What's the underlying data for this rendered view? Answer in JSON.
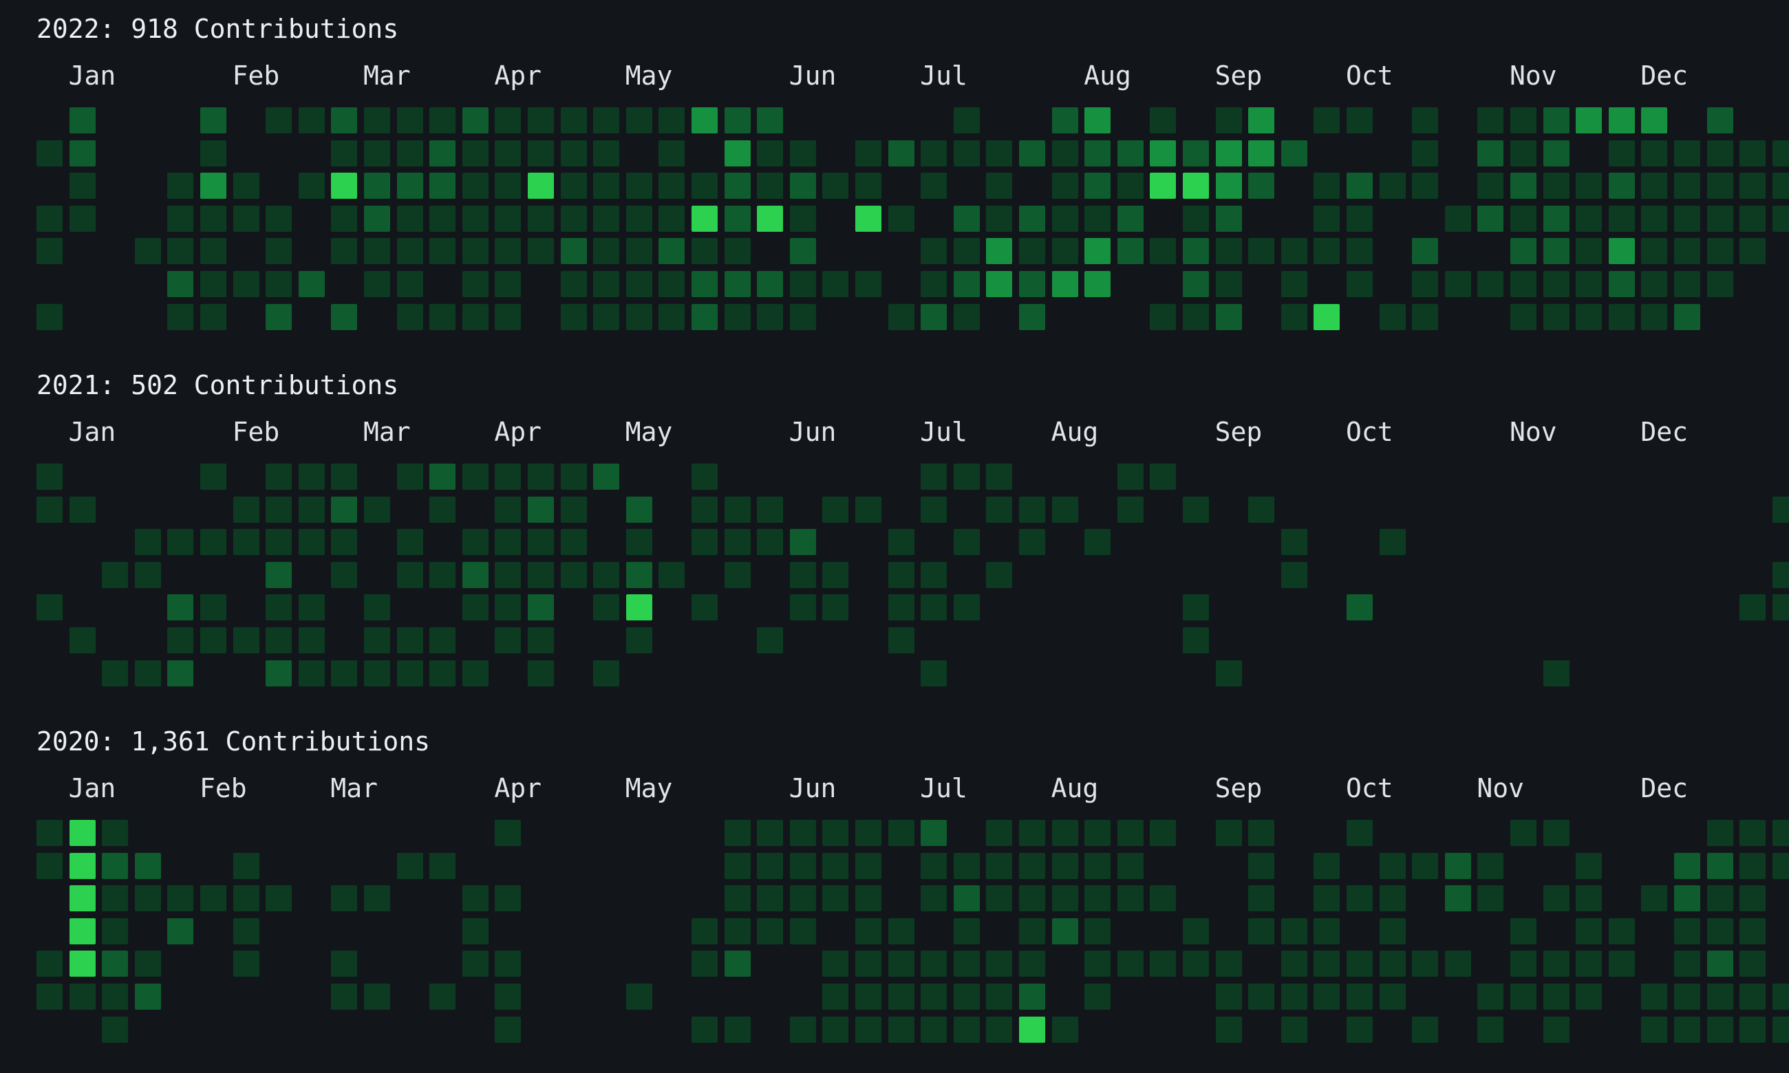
{
  "colors": {
    "background": "#12161b",
    "levels": [
      "#0c3b22",
      "#0f5c2e",
      "#16913f",
      "#2bd14f"
    ]
  },
  "years": [
    {
      "title": "2022: 918 Contributions",
      "months": [
        "Jan",
        "Feb",
        "Mar",
        "Apr",
        "May",
        "Jun",
        "Jul",
        "Aug",
        "Sep",
        "Oct",
        "Nov",
        "Dec"
      ],
      "month_weeks": [
        1,
        6,
        10,
        14,
        18,
        23,
        27,
        32,
        36,
        40,
        45,
        49
      ],
      "rows": [
        ". 2 . . . 2 . 1 1 2 1 1 1 2 1 1 1 1 1 1 3 2 2 . . . . . 1 . . 2 3 . 1 . 1 3 . 1 1 . 1 . 1 1 2 3 3 3 . 2 . .",
        "1 2 . . . 1 . . . 1 1 1 2 1 1 1 1 1 . 1 . 3 1 1 . 1 2 1 1 1 2 1 2 2 3 2 3 3 2 . . . 1 . 2 1 2 . 1 1 1 1 1 1 1 .",
        ". 1 . . 1 3 1 . 1 4 2 2 2 1 1 4 1 1 1 1 1 2 1 2 1 1 . 1 . 1 . 1 2 1 4 4 3 2 . 1 2 1 1 . 1 2 1 1 2 1 1 1 1 1 2 1",
        "1 1 . . 1 1 1 1 . 1 2 1 1 1 1 1 1 1 1 1 4 2 4 1 . 4 1 . 2 1 2 1 1 2 . 1 2 . . 1 1 . . 1 2 1 2 1 1 1 1 1 1 1 1 .",
        "1 . . 1 1 1 . 1 . 1 1 1 1 1 1 1 2 1 1 2 1 1 . 2 . . . 1 1 3 1 1 3 2 1 2 1 1 1 1 1 . 2 . . 2 2 1 3 1 1 1 1 . 1 1",
        ". . . . 2 1 1 1 2 . 1 1 . 1 1 . 1 1 1 1 2 2 2 1 1 1 . 1 2 3 2 3 3 . . 2 1 . 1 . 1 . 1 1 1 1 1 1 2 1 1 1 . . . .",
        "1 . . . 1 1 . 2 . 2 . 1 1 1 1 . 1 1 1 1 2 1 1 1 . . 1 2 1 . 2 . . . 1 1 2 . 1 4 . 1 1 . . 1 1 1 1 1 2 . . . . ."
      ]
    },
    {
      "title": "2021: 502 Contributions",
      "months": [
        "Jan",
        "Feb",
        "Mar",
        "Apr",
        "May",
        "Jun",
        "Jul",
        "Aug",
        "Sep",
        "Oct",
        "Nov",
        "Dec"
      ],
      "month_weeks": [
        1,
        6,
        10,
        14,
        18,
        23,
        27,
        31,
        36,
        40,
        45,
        49
      ],
      "rows": [
        "1 . . . . 1 . 1 1 1 . 1 2 1 1 1 1 2 . . 1 . . . . . . 1 1 1 . . . 1 1 . . . . . . . . . . . . . . . . . . .",
        "1 1 . . . . 1 1 1 2 1 . 1 . 1 2 1 . 2 . 1 1 1 . 1 1 . 1 . 1 1 1 . 1 . 1 . 1 . . . . . . . . . . . . . . . 1",
        ". . . 1 1 1 1 1 1 1 . 1 . 1 1 1 1 . 1 . 1 1 1 2 . . 1 . 1 . 1 . 1 . . . . . 1 . . 1 . . . . . . . . . . . .",
        ". . 1 1 . . . 2 . 1 . 1 1 2 1 1 1 1 2 1 . 1 . 1 1 . 1 1 . 1 . . . . . . . . 1 . . . . . . . . . . . . . . 1",
        "1 . . . 2 1 . 1 1 . 1 . . 1 1 2 . 1 4 . 1 . . 1 1 . 1 1 1 . . . . . . 1 . . . . 2 . . . . . . . . . . . 1 1",
        ". 1 . . 1 1 1 1 1 . 1 1 1 . 1 1 . . 1 . . . 1 . . . 1 . . . . . . . . 1 . . . . . . . . . . . . . . . . . .",
        ". . 1 1 2 . . 2 1 1 1 1 1 1 . 1 . 1 . . . . . . . . . 1 . . . . . . . . 1 . . . . . . . . . 1 . . . . . . ."
      ]
    },
    {
      "title": "2020: 1,361 Contributions",
      "months": [
        "Jan",
        "Feb",
        "Mar",
        "Apr",
        "May",
        "Jun",
        "Jul",
        "Aug",
        "Sep",
        "Oct",
        "Nov",
        "Dec"
      ],
      "month_weeks": [
        1,
        5,
        9,
        14,
        18,
        23,
        27,
        31,
        36,
        40,
        44,
        49
      ],
      "rows": [
        "1 4 1 . . . . . . . . . . . 1 . . . . . . 1 1 1 1 1 1 2 . 1 1 1 1 1 1 . 1 1 . . 1 . . . . 1 1 . . . . 1 1 1 1",
        "1 4 2 2 . . 1 . . . . 1 1 . . . . . . . . 1 1 1 1 1 . 1 1 1 1 1 1 1 . . . 1 . 1 . 1 1 2 1 . . 1 . . 2 2 1 1",
        ". 4 1 1 1 1 1 1 . 1 1 . . 1 1 . . . . . . 1 1 1 1 1 . 1 2 1 1 1 1 1 1 . . 1 . 1 1 1 . 2 1 . 1 1 . 1 2 1 1 .",
        ". 4 1 . 2 . 1 . . . . . . 1 . . . . . . 1 1 1 1 . 1 1 . 1 . 1 2 1 . . 1 . 1 1 1 . 1 . . . 1 . 1 1 . 1 1 1 .",
        "1 4 2 1 . . 1 . . 1 . . . 1 1 . . . . . 1 2 . . 1 1 1 1 1 1 1 . 1 1 1 1 1 . 1 1 1 1 1 1 . 1 1 1 1 . 1 2 1 . 1",
        "1 1 1 2 . . . . . 1 1 . 1 . 1 . . . 1 . . . . . 1 1 1 1 1 1 2 . 1 . . . 1 1 1 1 1 1 . . 1 1 1 1 . 1 1 1 1 1 .",
        ". . 1 . . . . . . . . . . . 1 . . . . . 1 1 . 1 1 1 1 1 1 1 4 1 . . . . 1 . 1 . 1 . 1 . 1 . 1 . . 1 1 1 1 1 ."
      ]
    }
  ]
}
